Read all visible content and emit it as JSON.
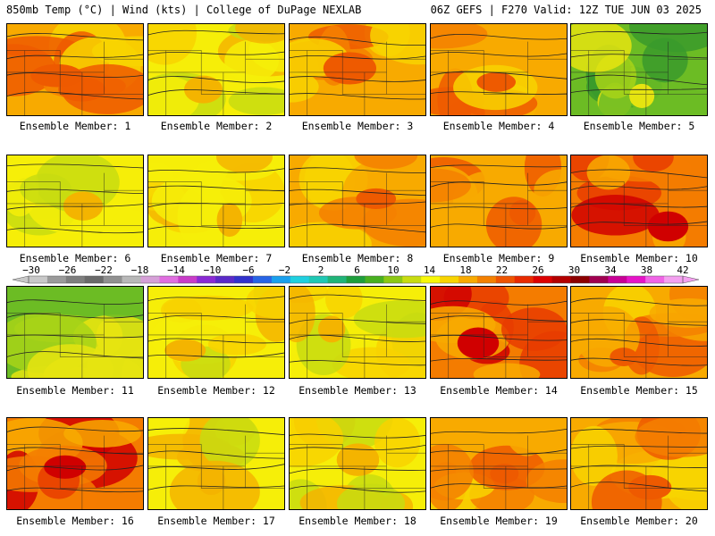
{
  "header": {
    "title_left": "850mb Temp (°C) | Wind (kts) | College of DuPage NEXLAB",
    "title_right": "06Z GEFS | F270 Valid: 12Z TUE JUN 03 2025"
  },
  "member_label_prefix": "Ensemble Member:",
  "members": [
    {
      "id": "1",
      "label": "Ensemble Member: 1",
      "tone": "warm"
    },
    {
      "id": "2",
      "label": "Ensemble Member: 2",
      "tone": "mild"
    },
    {
      "id": "3",
      "label": "Ensemble Member: 3",
      "tone": "warm"
    },
    {
      "id": "4",
      "label": "Ensemble Member: 4",
      "tone": "warm"
    },
    {
      "id": "5",
      "label": "Ensemble Member: 5",
      "tone": "cool"
    },
    {
      "id": "6",
      "label": "Ensemble Member: 6",
      "tone": "mild"
    },
    {
      "id": "7",
      "label": "Ensemble Member: 7",
      "tone": "mild"
    },
    {
      "id": "8",
      "label": "Ensemble Member: 8",
      "tone": "warm"
    },
    {
      "id": "9",
      "label": "Ensemble Member: 9",
      "tone": "warm"
    },
    {
      "id": "10",
      "label": "Ensemble Member: 10",
      "tone": "hot"
    },
    {
      "id": "11",
      "label": "Ensemble Member: 11",
      "tone": "cool"
    },
    {
      "id": "12",
      "label": "Ensemble Member: 12",
      "tone": "mild"
    },
    {
      "id": "13",
      "label": "Ensemble Member: 13",
      "tone": "mild"
    },
    {
      "id": "14",
      "label": "Ensemble Member: 14",
      "tone": "hot"
    },
    {
      "id": "15",
      "label": "Ensemble Member: 15",
      "tone": "warm"
    },
    {
      "id": "16",
      "label": "Ensemble Member: 16",
      "tone": "hot"
    },
    {
      "id": "17",
      "label": "Ensemble Member: 17",
      "tone": "mild"
    },
    {
      "id": "18",
      "label": "Ensemble Member: 18",
      "tone": "mild"
    },
    {
      "id": "19",
      "label": "Ensemble Member: 19",
      "tone": "warm"
    },
    {
      "id": "20",
      "label": "Ensemble Member: 20",
      "tone": "warm"
    }
  ],
  "colorbar": {
    "unit": "°C",
    "labels": [
      "-30",
      "-26",
      "-22",
      "-18",
      "-14",
      "-10",
      "-6",
      "-2",
      "2",
      "6",
      "10",
      "14",
      "18",
      "22",
      "26",
      "30",
      "34",
      "38",
      "42"
    ],
    "colors": [
      "#c8c8c8",
      "#9a9a9a",
      "#7e7e7e",
      "#6a6a6a",
      "#909090",
      "#b8b8b8",
      "#d6a0d8",
      "#e06ee0",
      "#c83cc8",
      "#8a2ad4",
      "#5a2ac8",
      "#3232cc",
      "#2864e6",
      "#1aa0ee",
      "#20d0e0",
      "#20c8b4",
      "#20b478",
      "#1e9e3c",
      "#48b020",
      "#8cc814",
      "#c8dc10",
      "#f8f808",
      "#f8d400",
      "#f8aa00",
      "#f48000",
      "#ee5400",
      "#e82a00",
      "#dc0000",
      "#b40000",
      "#8c0000",
      "#a00050",
      "#c80096",
      "#e614c8",
      "#f064e6",
      "#f4a0f0"
    ]
  },
  "colors": {
    "cool": "#46a62c",
    "mild": "#ecd80c",
    "warm": "#f4a014",
    "hot": "#e82a00",
    "contour": "#222222",
    "border": "#000000"
  }
}
